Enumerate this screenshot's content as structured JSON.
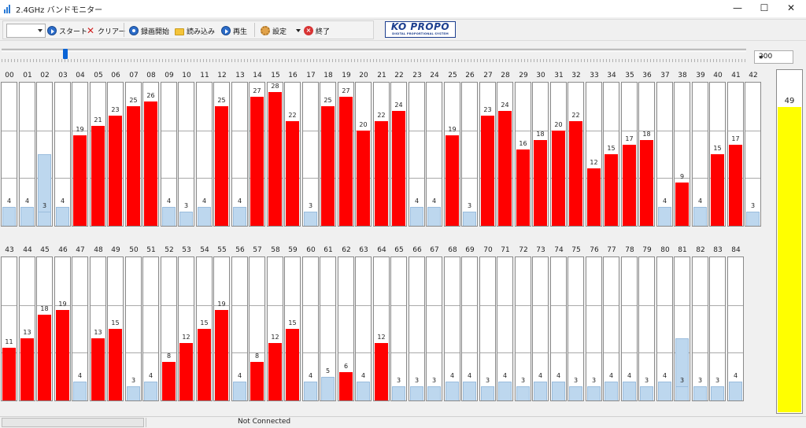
{
  "window": {
    "title": "2.4GHz バンドモニター",
    "minimize_glyph": "—",
    "maximize_glyph": "☐",
    "close_glyph": "✕"
  },
  "toolbar": {
    "channel_select_value": "",
    "start_label": "スタート",
    "clear_label": "クリアー",
    "record_label": "録画開始",
    "load_label": "読み込み",
    "play_label": "再生",
    "settings_label": "設定",
    "exit_label": "終了",
    "logo": {
      "main": "KO PROPO",
      "sub": "DIGITAL PROPORTIONAL SYSTEM",
      "color": "#1d3f8f"
    }
  },
  "timeline": {
    "position": 0.082
  },
  "zoom_select": {
    "value": "200"
  },
  "colors": {
    "high": "#ff0000",
    "low": "#bdd7ee",
    "peak": "#ffff00"
  },
  "chart_data": {
    "type": "bar",
    "categories": [
      "00",
      "01",
      "02",
      "03",
      "04",
      "05",
      "06",
      "07",
      "08",
      "09",
      "10",
      "11",
      "12",
      "13",
      "14",
      "15",
      "16",
      "17",
      "18",
      "19",
      "20",
      "21",
      "22",
      "23",
      "24",
      "25",
      "26",
      "27",
      "28",
      "29",
      "30",
      "31",
      "32",
      "33",
      "34",
      "35",
      "36",
      "37",
      "38",
      "39",
      "40",
      "41",
      "42",
      "43",
      "44",
      "45",
      "46",
      "47",
      "48",
      "49",
      "50",
      "51",
      "52",
      "53",
      "54",
      "55",
      "56",
      "57",
      "58",
      "59",
      "60",
      "61",
      "62",
      "63",
      "64",
      "65",
      "66",
      "67",
      "68",
      "69",
      "70",
      "71",
      "72",
      "73",
      "74",
      "75",
      "76",
      "77",
      "78",
      "79",
      "80",
      "81",
      "82",
      "83",
      "84"
    ],
    "values": [
      4,
      4,
      3,
      4,
      19,
      21,
      23,
      25,
      26,
      4,
      3,
      4,
      25,
      4,
      27,
      28,
      22,
      3,
      25,
      27,
      20,
      22,
      24,
      4,
      4,
      19,
      3,
      23,
      24,
      16,
      18,
      20,
      22,
      12,
      15,
      17,
      18,
      4,
      9,
      4,
      15,
      17,
      3,
      11,
      13,
      18,
      19,
      4,
      13,
      15,
      3,
      4,
      8,
      12,
      15,
      19,
      4,
      8,
      12,
      15,
      4,
      5,
      6,
      4,
      12,
      3,
      3,
      3,
      4,
      4,
      3,
      4,
      3,
      4,
      4,
      3,
      3,
      4,
      4,
      3,
      4,
      3,
      3,
      3,
      4
    ],
    "peak_hold": [
      4,
      4,
      15,
      4,
      19,
      21,
      23,
      25,
      26,
      4,
      3,
      4,
      25,
      4,
      27,
      28,
      22,
      3,
      25,
      27,
      20,
      22,
      24,
      4,
      4,
      19,
      3,
      23,
      24,
      16,
      18,
      20,
      22,
      12,
      15,
      17,
      18,
      4,
      9,
      4,
      15,
      17,
      3,
      11,
      13,
      18,
      19,
      4,
      13,
      15,
      3,
      4,
      8,
      12,
      15,
      19,
      4,
      8,
      12,
      15,
      4,
      5,
      6,
      4,
      12,
      3,
      3,
      3,
      4,
      4,
      3,
      4,
      3,
      4,
      4,
      3,
      3,
      4,
      4,
      3,
      4,
      13,
      3,
      3,
      4
    ],
    "ylim": [
      0,
      30
    ],
    "highlight_threshold": 5,
    "peak_meter": 49,
    "peak_meter_max": 55
  },
  "status": {
    "connection": "Not Connected"
  }
}
